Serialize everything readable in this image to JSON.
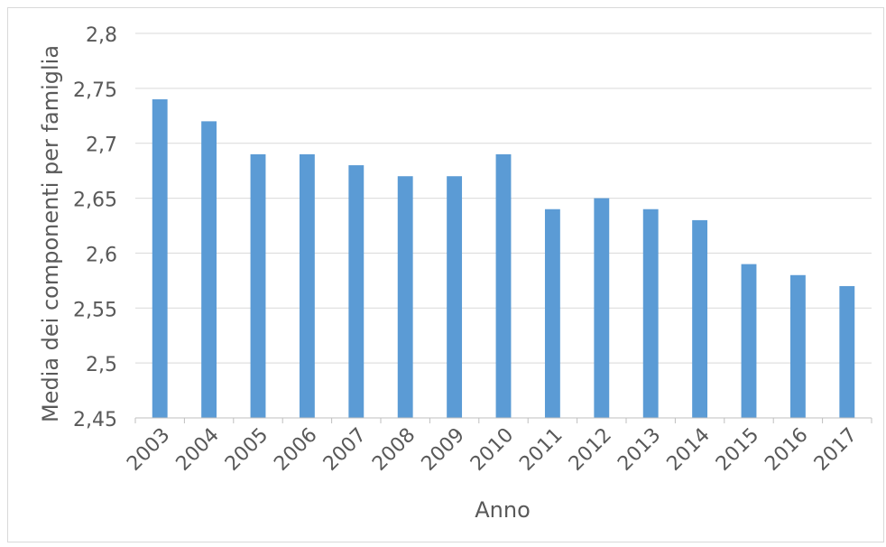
{
  "chart_data": {
    "type": "bar",
    "title": "",
    "xlabel": "Anno",
    "ylabel": "Media dei componenti per famiglia",
    "categories": [
      "2003",
      "2004",
      "2005",
      "2006",
      "2007",
      "2008",
      "2009",
      "2010",
      "2011",
      "2012",
      "2013",
      "2014",
      "2015",
      "2016",
      "2017"
    ],
    "values": [
      2.74,
      2.72,
      2.69,
      2.69,
      2.68,
      2.67,
      2.67,
      2.69,
      2.64,
      2.65,
      2.64,
      2.63,
      2.59,
      2.58,
      2.57
    ],
    "ylim": [
      2.45,
      2.8
    ],
    "yticks": [
      "2,45",
      "2,5",
      "2,55",
      "2,6",
      "2,65",
      "2,7",
      "2,75",
      "2,8"
    ],
    "grid": true,
    "legend": "none",
    "colors": {
      "bar": "#5b9bd5",
      "grid": "#d9d9d9",
      "axis": "#bfbfbf",
      "text": "#595959"
    }
  }
}
